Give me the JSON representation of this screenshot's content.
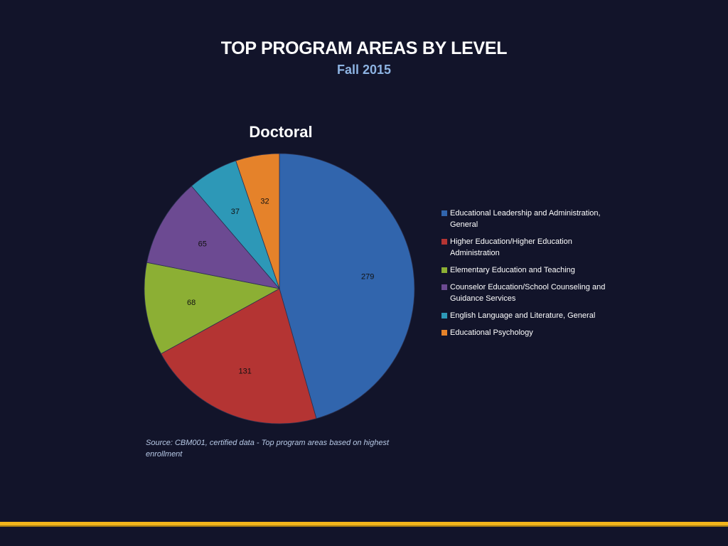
{
  "header": {
    "title": "TOP PROGRAM AREAS BY LEVEL",
    "subtitle": "Fall 2015"
  },
  "chart_data": {
    "type": "pie",
    "title": "Doctoral",
    "categories": [
      "Educational Leadership and Administration, General",
      "Higher Education/Higher Education Administration",
      "Elementary Education and Teaching",
      "Counselor Education/School Counseling and Guidance Services",
      "English Language and Literature, General",
      "Educational Psychology"
    ],
    "values": [
      279,
      131,
      68,
      65,
      37,
      32
    ],
    "colors": [
      "#3165ad",
      "#b43433",
      "#8caf34",
      "#6c4a92",
      "#2d98b7",
      "#e5822a"
    ],
    "data_labels": [
      "279",
      "131",
      "68",
      "65",
      "37",
      "32"
    ],
    "legend": "right",
    "start": "top",
    "direction": "clockwise"
  },
  "footer": {
    "source": "Source: CBM001, certified data - Top program areas  based on highest enrollment"
  },
  "colors": {
    "background": "#12142a",
    "accent_bar": "#f2b51b",
    "subtitle": "#8db3e2"
  }
}
